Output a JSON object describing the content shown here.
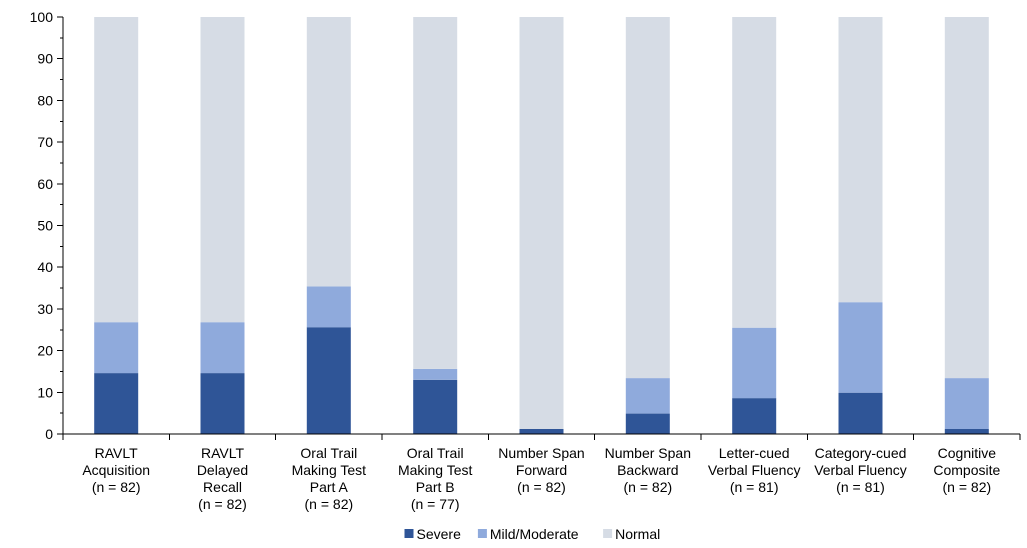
{
  "chart_data": {
    "type": "bar",
    "stacked": true,
    "categories": [
      [
        "RAVLT",
        "Acquisition",
        "(n = 82)"
      ],
      [
        "RAVLT",
        "Delayed",
        "Recall",
        "(n = 82)"
      ],
      [
        "Oral Trail",
        "Making Test",
        "Part A",
        "(n = 82)"
      ],
      [
        "Oral Trail",
        "Making Test",
        "Part B",
        "(n = 77)"
      ],
      [
        "Number Span",
        "Forward",
        "(n = 82)"
      ],
      [
        "Number Span",
        "Backward",
        "(n = 82)"
      ],
      [
        "Letter-cued",
        "Verbal Fluency",
        "(n = 81)"
      ],
      [
        "Category-cued",
        "Verbal Fluency",
        "(n = 81)"
      ],
      [
        "Cognitive",
        "Composite",
        "(n = 82)"
      ]
    ],
    "series": [
      {
        "name": "Severe",
        "color": "#2f5597",
        "values": [
          14.6,
          14.6,
          25.6,
          13.0,
          1.2,
          4.9,
          8.6,
          9.9,
          1.2
        ]
      },
      {
        "name": "Mild/Moderate",
        "color": "#8faadc",
        "values": [
          12.2,
          12.2,
          9.8,
          2.6,
          0,
          8.5,
          16.9,
          21.7,
          12.2
        ]
      },
      {
        "name": "Normal",
        "color": "#d6dce5",
        "values": [
          73.2,
          73.2,
          64.6,
          84.4,
          98.8,
          86.6,
          74.5,
          68.4,
          86.6
        ]
      }
    ],
    "ylim": [
      0,
      100
    ],
    "yticks": [
      "0",
      "10",
      "20",
      "30",
      "40",
      "50",
      "60",
      "70",
      "80",
      "90",
      "100"
    ],
    "legend_position": "bottom",
    "grid": false
  }
}
